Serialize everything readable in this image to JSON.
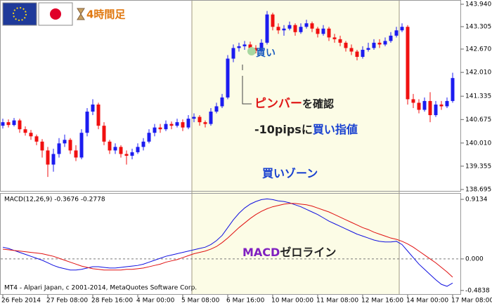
{
  "chart_data": [
    {
      "type": "candlestick",
      "categories": [
        "26 Feb 2014",
        null,
        null,
        null,
        null,
        null,
        null,
        null,
        "27 Feb 08:00",
        null,
        null,
        null,
        null,
        null,
        null,
        null,
        "28 Feb 16:00",
        null,
        null,
        null,
        null,
        null,
        null,
        null,
        "4 Mar 00:00",
        null,
        null,
        null,
        null,
        null,
        null,
        null,
        "5 Mar 08:00",
        null,
        null,
        null,
        null,
        null,
        null,
        null,
        "6 Mar 16:00",
        null,
        null,
        null,
        null,
        null,
        null,
        null,
        "10 Mar 00:00",
        null,
        null,
        null,
        null,
        null,
        null,
        null,
        "11 Mar 08:00",
        null,
        null,
        null,
        null,
        null,
        null,
        null,
        "12 Mar 16:00",
        null,
        null,
        null,
        null,
        null,
        null,
        null,
        "14 Mar 00:00",
        null,
        null,
        null,
        null,
        null,
        null,
        null,
        "17 Mar 08:00"
      ],
      "open": [
        140.5,
        140.6,
        140.52,
        140.65,
        140.4,
        140.3,
        140.2,
        140.05,
        139.8,
        139.4,
        139.7,
        140.0,
        140.1,
        139.8,
        139.6,
        140.3,
        140.9,
        141.1,
        140.5,
        140.05,
        139.8,
        139.9,
        139.7,
        139.65,
        139.75,
        139.9,
        140.05,
        140.3,
        140.45,
        140.4,
        140.55,
        140.5,
        140.6,
        140.45,
        140.7,
        140.75,
        140.6,
        140.55,
        140.9,
        141.05,
        141.3,
        142.4,
        142.7,
        142.75,
        142.8,
        142.7,
        142.62,
        142.85,
        143.65,
        143.3,
        143.2,
        143.25,
        143.35,
        143.15,
        143.3,
        143.4,
        143.25,
        143.1,
        143.25,
        143.0,
        142.95,
        142.85,
        142.7,
        142.6,
        142.45,
        142.65,
        142.7,
        142.85,
        142.8,
        142.9,
        143.05,
        143.2,
        143.3,
        141.25,
        141.15,
        140.95,
        141.2,
        140.8,
        141.1,
        141.05,
        141.2
      ],
      "high": [
        140.7,
        140.68,
        140.72,
        140.7,
        140.48,
        140.38,
        140.25,
        140.12,
        139.9,
        139.85,
        140.15,
        140.25,
        140.15,
        139.95,
        140.4,
        141.0,
        141.25,
        141.15,
        140.6,
        140.1,
        140.0,
        139.95,
        139.8,
        139.85,
        140.0,
        140.15,
        140.4,
        140.55,
        140.55,
        140.65,
        140.62,
        140.7,
        140.68,
        140.8,
        140.85,
        140.8,
        140.65,
        141.0,
        141.15,
        141.4,
        142.5,
        142.8,
        142.85,
        142.9,
        142.88,
        142.78,
        142.95,
        143.75,
        143.7,
        143.4,
        143.35,
        143.45,
        143.4,
        143.4,
        143.5,
        143.45,
        143.3,
        143.35,
        143.3,
        143.1,
        143.05,
        142.9,
        142.8,
        142.65,
        142.75,
        142.85,
        142.95,
        142.95,
        143.0,
        143.15,
        143.3,
        143.4,
        143.35,
        141.4,
        141.25,
        141.3,
        141.45,
        141.2,
        141.2,
        141.3,
        142.0
      ],
      "low": [
        140.42,
        140.45,
        140.48,
        140.3,
        140.22,
        140.1,
        139.95,
        139.6,
        139.05,
        139.2,
        139.6,
        139.9,
        139.7,
        139.5,
        139.55,
        140.2,
        140.8,
        140.4,
        139.95,
        139.7,
        139.7,
        139.6,
        139.4,
        139.55,
        139.7,
        139.8,
        140.0,
        140.2,
        140.3,
        140.35,
        140.4,
        140.45,
        140.35,
        140.4,
        140.6,
        140.5,
        140.45,
        140.5,
        140.85,
        141.0,
        141.25,
        142.3,
        142.6,
        142.65,
        142.6,
        142.55,
        142.58,
        142.8,
        143.2,
        143.1,
        143.05,
        143.2,
        143.05,
        143.1,
        143.25,
        143.15,
        143.0,
        143.05,
        142.9,
        142.85,
        142.75,
        142.6,
        142.5,
        142.35,
        142.4,
        142.6,
        142.65,
        142.7,
        142.75,
        142.85,
        143.0,
        143.15,
        141.1,
        141.0,
        140.85,
        140.9,
        140.6,
        140.75,
        140.95,
        141.0,
        141.15
      ],
      "close": [
        140.6,
        140.52,
        140.65,
        140.4,
        140.3,
        140.2,
        140.05,
        139.8,
        139.4,
        139.7,
        140.0,
        140.1,
        139.8,
        139.6,
        140.3,
        140.9,
        141.1,
        140.5,
        140.05,
        139.8,
        139.9,
        139.7,
        139.65,
        139.75,
        139.9,
        140.05,
        140.3,
        140.45,
        140.4,
        140.55,
        140.5,
        140.6,
        140.45,
        140.7,
        140.75,
        140.6,
        140.55,
        140.9,
        141.05,
        141.3,
        142.4,
        142.7,
        142.75,
        142.8,
        142.7,
        142.62,
        142.85,
        143.65,
        143.3,
        143.2,
        143.25,
        143.35,
        143.15,
        143.3,
        143.4,
        143.25,
        143.1,
        143.25,
        143.0,
        142.95,
        142.85,
        142.7,
        142.6,
        142.45,
        142.65,
        142.7,
        142.85,
        142.8,
        142.9,
        143.05,
        143.2,
        143.3,
        141.25,
        141.15,
        140.95,
        141.2,
        140.8,
        141.1,
        141.05,
        141.2,
        141.85
      ],
      "colors": {
        "up": "#1c1cf0",
        "down": "#f01010"
      },
      "ylim": [
        138.635,
        144.04
      ],
      "yticks": [
        {
          "value": 143.94,
          "label": "143.940"
        },
        143.305,
        {
          "value": 142.67,
          "label": "142.670"
        },
        {
          "value": 142.01,
          "label": "142.010"
        },
        141.335,
        140.675,
        {
          "value": 140.01,
          "label": "140.010"
        },
        139.355,
        138.695
      ]
    },
    {
      "type": "line",
      "title": "MACD(12,26,9) -0.3676 -0.2778",
      "series": [
        {
          "color": "#1010e0",
          "values": [
            0.18,
            0.16,
            0.13,
            0.1,
            0.07,
            0.04,
            0.01,
            -0.02,
            -0.06,
            -0.1,
            -0.13,
            -0.15,
            -0.17,
            -0.17,
            -0.16,
            -0.14,
            -0.12,
            -0.12,
            -0.13,
            -0.14,
            -0.14,
            -0.13,
            -0.12,
            -0.11,
            -0.1,
            -0.08,
            -0.05,
            -0.02,
            0.01,
            0.04,
            0.06,
            0.08,
            0.1,
            0.12,
            0.14,
            0.16,
            0.18,
            0.22,
            0.28,
            0.36,
            0.48,
            0.6,
            0.7,
            0.78,
            0.84,
            0.88,
            0.91,
            0.92,
            0.91,
            0.89,
            0.88,
            0.86,
            0.83,
            0.8,
            0.76,
            0.72,
            0.68,
            0.63,
            0.58,
            0.54,
            0.5,
            0.46,
            0.42,
            0.38,
            0.35,
            0.32,
            0.29,
            0.27,
            0.26,
            0.26,
            0.27,
            0.22,
            0.12,
            0.02,
            -0.08,
            -0.16,
            -0.24,
            -0.32,
            -0.39,
            -0.42,
            -0.37
          ]
        },
        {
          "color": "#e01010",
          "values": [
            0.15,
            0.14,
            0.13,
            0.12,
            0.11,
            0.1,
            0.09,
            0.08,
            0.06,
            0.04,
            0.01,
            -0.02,
            -0.05,
            -0.08,
            -0.11,
            -0.13,
            -0.15,
            -0.16,
            -0.17,
            -0.17,
            -0.17,
            -0.17,
            -0.16,
            -0.16,
            -0.15,
            -0.14,
            -0.12,
            -0.1,
            -0.08,
            -0.05,
            -0.03,
            -0.01,
            0.02,
            0.05,
            0.08,
            0.1,
            0.12,
            0.15,
            0.19,
            0.25,
            0.32,
            0.4,
            0.48,
            0.55,
            0.62,
            0.68,
            0.73,
            0.77,
            0.8,
            0.82,
            0.84,
            0.85,
            0.85,
            0.84,
            0.83,
            0.81,
            0.78,
            0.75,
            0.72,
            0.68,
            0.64,
            0.6,
            0.56,
            0.52,
            0.48,
            0.45,
            0.41,
            0.38,
            0.35,
            0.32,
            0.3,
            0.27,
            0.23,
            0.18,
            0.12,
            0.06,
            0.0,
            -0.06,
            -0.13,
            -0.2,
            -0.28
          ]
        }
      ],
      "ylim": [
        -0.55,
        1.0
      ],
      "yticks": [
        0.9134,
        {
          "value": 0,
          "label": "0.000"
        },
        -0.4838
      ]
    }
  ],
  "annotations": {
    "timeframe": "4時間足",
    "buy_marker": "買い",
    "pin_bar": "ピンバー",
    "confirm": "を確認",
    "minus_pips": "-10pipsに",
    "buy_limit": "買い指値",
    "buy_zone": "買いゾーン",
    "macd_zero_a": "MACD",
    "macd_zero_b": "ゼロライン"
  },
  "copyright": "MT4 - Alpari Japan, c 2001-2014, MetaQuotes Software Corp."
}
